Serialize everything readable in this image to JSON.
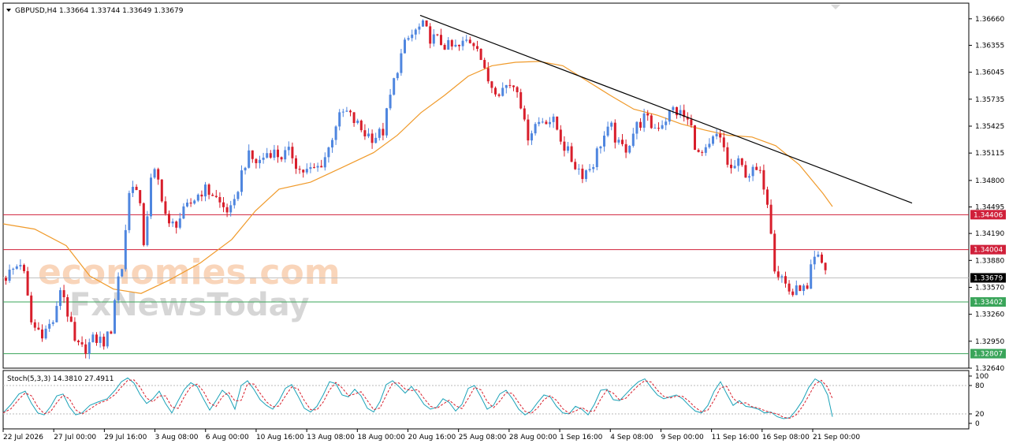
{
  "watermark": {
    "line1": "economies.com",
    "line2": "FxNewsToday"
  },
  "chart_data": [
    {
      "type": "candlestick",
      "symbol_header": "GBPUSD,H4  1.33664 1.33744 1.33649 1.33679",
      "timeframe": "H4",
      "ohlc": {
        "open": 1.33664,
        "high": 1.33744,
        "low": 1.33649,
        "close": 1.33679
      },
      "ylim": [
        1.3264,
        1.3684
      ],
      "y_ticks": [
        "1.36660",
        "1.36355",
        "1.36045",
        "1.35735",
        "1.35425",
        "1.35115",
        "1.34800",
        "1.34495",
        "1.34190",
        "1.33880",
        "1.33570",
        "1.33260",
        "1.32950",
        "1.32640"
      ],
      "x_ticks": [
        "22 Jul 2026",
        "27 Jul 00:00",
        "29 Jul 16:00",
        "3 Aug 08:00",
        "6 Aug 00:00",
        "10 Aug 16:00",
        "13 Aug 08:00",
        "18 Aug 00:00",
        "20 Aug 16:00",
        "25 Aug 08:00",
        "28 Aug 00:00",
        "1 Sep 16:00",
        "4 Sep 08:00",
        "9 Sep 00:00",
        "11 Sep 16:00",
        "16 Sep 08:00",
        "21 Sep 00:00"
      ],
      "price_path": [
        [
          0,
          1.3368
        ],
        [
          12,
          1.3378
        ],
        [
          22,
          1.3388
        ],
        [
          35,
          1.3312
        ],
        [
          50,
          1.3305
        ],
        [
          65,
          1.3322
        ],
        [
          72,
          1.3362
        ],
        [
          82,
          1.332
        ],
        [
          90,
          1.329
        ],
        [
          100,
          1.3285
        ],
        [
          115,
          1.3298
        ],
        [
          128,
          1.3294
        ],
        [
          136,
          1.331
        ],
        [
          142,
          1.3362
        ],
        [
          150,
          1.3382
        ],
        [
          157,
          1.346
        ],
        [
          164,
          1.3482
        ],
        [
          172,
          1.3448
        ],
        [
          178,
          1.34
        ],
        [
          184,
          1.3475
        ],
        [
          192,
          1.349
        ],
        [
          200,
          1.3462
        ],
        [
          208,
          1.3425
        ],
        [
          218,
          1.3432
        ],
        [
          228,
          1.3443
        ],
        [
          240,
          1.3458
        ],
        [
          252,
          1.347
        ],
        [
          264,
          1.3465
        ],
        [
          276,
          1.345
        ],
        [
          290,
          1.3443
        ],
        [
          298,
          1.348
        ],
        [
          308,
          1.3508
        ],
        [
          322,
          1.35
        ],
        [
          336,
          1.3515
        ],
        [
          350,
          1.3508
        ],
        [
          364,
          1.3512
        ],
        [
          374,
          1.3492
        ],
        [
          386,
          1.349
        ],
        [
          398,
          1.3495
        ],
        [
          410,
          1.3512
        ],
        [
          420,
          1.3545
        ],
        [
          432,
          1.356
        ],
        [
          444,
          1.3548
        ],
        [
          456,
          1.3535
        ],
        [
          468,
          1.353
        ],
        [
          480,
          1.3535
        ],
        [
          490,
          1.3578
        ],
        [
          500,
          1.3615
        ],
        [
          510,
          1.364
        ],
        [
          520,
          1.365
        ],
        [
          530,
          1.3658
        ],
        [
          540,
          1.3645
        ],
        [
          552,
          1.364
        ],
        [
          564,
          1.3633
        ],
        [
          576,
          1.3632
        ],
        [
          588,
          1.3642
        ],
        [
          600,
          1.3638
        ],
        [
          610,
          1.36
        ],
        [
          620,
          1.3588
        ],
        [
          630,
          1.3584
        ],
        [
          640,
          1.3592
        ],
        [
          652,
          1.3588
        ],
        [
          662,
          1.353
        ],
        [
          674,
          1.3545
        ],
        [
          686,
          1.3552
        ],
        [
          698,
          1.3546
        ],
        [
          710,
          1.352
        ],
        [
          722,
          1.35
        ],
        [
          734,
          1.3488
        ],
        [
          746,
          1.3498
        ],
        [
          758,
          1.3528
        ],
        [
          770,
          1.354
        ],
        [
          780,
          1.3518
        ],
        [
          790,
          1.3518
        ],
        [
          800,
          1.354
        ],
        [
          812,
          1.3552
        ],
        [
          824,
          1.354
        ],
        [
          836,
          1.3548
        ],
        [
          848,
          1.3562
        ],
        [
          860,
          1.3555
        ],
        [
          870,
          1.3545
        ],
        [
          880,
          1.3508
        ],
        [
          892,
          1.3512
        ],
        [
          902,
          1.3532
        ],
        [
          912,
          1.352
        ],
        [
          920,
          1.349
        ],
        [
          930,
          1.35
        ],
        [
          942,
          1.3488
        ],
        [
          954,
          1.349
        ],
        [
          962,
          1.3482
        ],
        [
          970,
          1.345
        ],
        [
          978,
          1.3375
        ],
        [
          986,
          1.337
        ],
        [
          994,
          1.3355
        ],
        [
          1002,
          1.3348
        ],
        [
          1010,
          1.336
        ],
        [
          1018,
          1.3348
        ],
        [
          1024,
          1.338
        ],
        [
          1030,
          1.3392
        ],
        [
          1036,
          1.3385
        ],
        [
          1042,
          1.3378
        ],
        [
          1048,
          1.3368
        ],
        [
          1052,
          1.3368
        ]
      ],
      "moving_average_path": [
        [
          0,
          1.343
        ],
        [
          40,
          1.3424
        ],
        [
          80,
          1.3405
        ],
        [
          110,
          1.337
        ],
        [
          140,
          1.3355
        ],
        [
          175,
          1.335
        ],
        [
          210,
          1.3365
        ],
        [
          250,
          1.3385
        ],
        [
          290,
          1.3412
        ],
        [
          320,
          1.3445
        ],
        [
          350,
          1.347
        ],
        [
          390,
          1.3478
        ],
        [
          430,
          1.3495
        ],
        [
          470,
          1.3512
        ],
        [
          500,
          1.3532
        ],
        [
          530,
          1.3558
        ],
        [
          560,
          1.3578
        ],
        [
          590,
          1.36
        ],
        [
          620,
          1.3612
        ],
        [
          650,
          1.3616
        ],
        [
          680,
          1.3617
        ],
        [
          710,
          1.3612
        ],
        [
          740,
          1.3595
        ],
        [
          770,
          1.3578
        ],
        [
          800,
          1.3562
        ],
        [
          830,
          1.3555
        ],
        [
          860,
          1.3545
        ],
        [
          890,
          1.3538
        ],
        [
          920,
          1.3532
        ],
        [
          950,
          1.353
        ],
        [
          980,
          1.352
        ],
        [
          1010,
          1.3498
        ],
        [
          1040,
          1.3465
        ],
        [
          1052,
          1.345
        ]
      ],
      "trendline": {
        "from": [
          533,
          1.367
        ],
        "to": [
          1157,
          1.3454
        ]
      },
      "horizontal_levels": [
        {
          "value": 1.34406,
          "label": "1.34406",
          "color": "#d0203a",
          "line_color": "#d0203a"
        },
        {
          "value": 1.34004,
          "label": "1.34004",
          "color": "#d0203a",
          "line_color": "#d0203a"
        },
        {
          "value": 1.33679,
          "label": "1.33679",
          "color": "#000000",
          "line_color": "#c0c0c0"
        },
        {
          "value": 1.33402,
          "label": "1.33402",
          "color": "#3aa55a",
          "line_color": "#3aa55a"
        },
        {
          "value": 1.32807,
          "label": "1.32807",
          "color": "#3aa55a",
          "line_color": "#3aa55a"
        }
      ],
      "colors": {
        "bull": "#4f86df",
        "bear": "#d81e2b",
        "ma": "#f09a2a",
        "trend": "#000000"
      }
    },
    {
      "type": "line",
      "indicator_header": "Stoch(5,3,3) 14.3810 27.4911",
      "ylim": [
        0,
        100
      ],
      "y_ticks": [
        "100",
        "80",
        "20",
        "0"
      ],
      "levels": [
        80,
        20
      ],
      "series": [
        {
          "role": "main",
          "color": "#1aa2b8"
        },
        {
          "role": "signal",
          "color": "#d81e2b"
        }
      ],
      "stoch_path": [
        [
          0,
          22
        ],
        [
          10,
          40
        ],
        [
          20,
          62
        ],
        [
          28,
          68
        ],
        [
          36,
          42
        ],
        [
          44,
          22
        ],
        [
          52,
          18
        ],
        [
          60,
          35
        ],
        [
          68,
          58
        ],
        [
          76,
          62
        ],
        [
          84,
          35
        ],
        [
          92,
          18
        ],
        [
          100,
          22
        ],
        [
          110,
          38
        ],
        [
          120,
          45
        ],
        [
          132,
          52
        ],
        [
          142,
          70
        ],
        [
          150,
          88
        ],
        [
          158,
          96
        ],
        [
          166,
          85
        ],
        [
          174,
          60
        ],
        [
          182,
          42
        ],
        [
          190,
          52
        ],
        [
          198,
          68
        ],
        [
          206,
          42
        ],
        [
          214,
          22
        ],
        [
          222,
          48
        ],
        [
          230,
          72
        ],
        [
          238,
          86
        ],
        [
          246,
          78
        ],
        [
          254,
          52
        ],
        [
          262,
          28
        ],
        [
          270,
          48
        ],
        [
          278,
          70
        ],
        [
          286,
          58
        ],
        [
          294,
          30
        ],
        [
          302,
          80
        ],
        [
          310,
          90
        ],
        [
          318,
          72
        ],
        [
          326,
          50
        ],
        [
          334,
          38
        ],
        [
          342,
          30
        ],
        [
          350,
          48
        ],
        [
          358,
          74
        ],
        [
          366,
          82
        ],
        [
          374,
          58
        ],
        [
          382,
          32
        ],
        [
          390,
          24
        ],
        [
          398,
          36
        ],
        [
          406,
          60
        ],
        [
          414,
          88
        ],
        [
          422,
          84
        ],
        [
          430,
          60
        ],
        [
          438,
          56
        ],
        [
          446,
          72
        ],
        [
          454,
          58
        ],
        [
          462,
          32
        ],
        [
          470,
          24
        ],
        [
          478,
          46
        ],
        [
          486,
          82
        ],
        [
          494,
          90
        ],
        [
          502,
          78
        ],
        [
          510,
          64
        ],
        [
          518,
          78
        ],
        [
          526,
          60
        ],
        [
          534,
          40
        ],
        [
          542,
          30
        ],
        [
          550,
          34
        ],
        [
          558,
          52
        ],
        [
          566,
          44
        ],
        [
          574,
          26
        ],
        [
          582,
          40
        ],
        [
          590,
          74
        ],
        [
          598,
          80
        ],
        [
          606,
          56
        ],
        [
          614,
          30
        ],
        [
          622,
          38
        ],
        [
          630,
          62
        ],
        [
          638,
          70
        ],
        [
          646,
          52
        ],
        [
          654,
          30
        ],
        [
          662,
          18
        ],
        [
          670,
          26
        ],
        [
          678,
          44
        ],
        [
          686,
          60
        ],
        [
          694,
          56
        ],
        [
          702,
          36
        ],
        [
          710,
          22
        ],
        [
          718,
          20
        ],
        [
          726,
          36
        ],
        [
          734,
          30
        ],
        [
          742,
          18
        ],
        [
          750,
          40
        ],
        [
          758,
          70
        ],
        [
          766,
          72
        ],
        [
          774,
          50
        ],
        [
          782,
          48
        ],
        [
          790,
          62
        ],
        [
          798,
          76
        ],
        [
          806,
          88
        ],
        [
          814,
          94
        ],
        [
          822,
          76
        ],
        [
          830,
          60
        ],
        [
          838,
          52
        ],
        [
          846,
          56
        ],
        [
          854,
          60
        ],
        [
          862,
          52
        ],
        [
          870,
          38
        ],
        [
          878,
          26
        ],
        [
          886,
          22
        ],
        [
          894,
          38
        ],
        [
          902,
          68
        ],
        [
          910,
          88
        ],
        [
          918,
          62
        ],
        [
          926,
          38
        ],
        [
          934,
          48
        ],
        [
          942,
          36
        ],
        [
          950,
          34
        ],
        [
          958,
          30
        ],
        [
          966,
          22
        ],
        [
          974,
          24
        ],
        [
          982,
          14
        ],
        [
          990,
          10
        ],
        [
          998,
          12
        ],
        [
          1006,
          28
        ],
        [
          1014,
          48
        ],
        [
          1022,
          76
        ],
        [
          1030,
          94
        ],
        [
          1038,
          86
        ],
        [
          1046,
          60
        ],
        [
          1052,
          14
        ]
      ]
    }
  ]
}
